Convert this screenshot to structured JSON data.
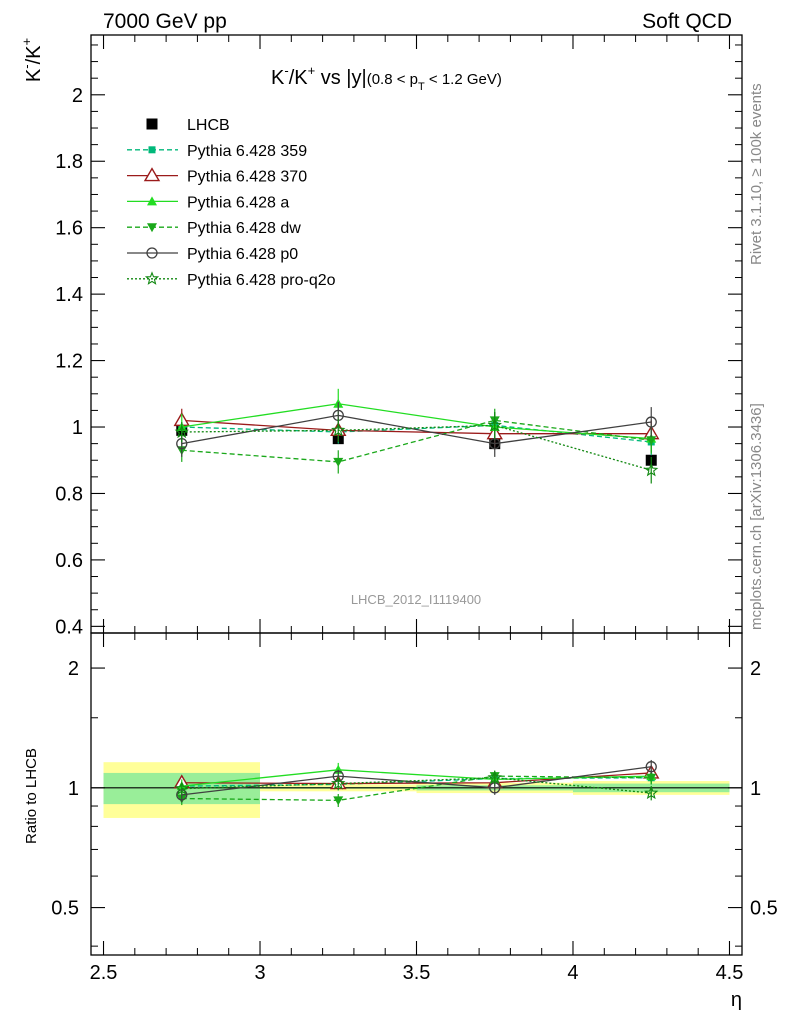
{
  "header": {
    "left": "7000 GeV pp",
    "right": "Soft QCD"
  },
  "side_labels": {
    "top": "Rivet 3.1.10, ≥ 100k events",
    "bottom": "mcplots.cern.ch [arXiv:1306.3436]"
  },
  "colors": {
    "lhcb": "#000000",
    "p359": "#00b87a",
    "p370": "#9b1b1b",
    "pa": "#22dd22",
    "pdw": "#1aa81a",
    "pp0": "#404040",
    "pq2o": "#118811",
    "band_inner": "#99ee99",
    "band_outer": "#ffff99"
  },
  "chart_data": [
    {
      "type": "line",
      "title": "K⁻/K⁺ vs |y|(0.8 < p_T < 1.2 GeV)",
      "title_main": "K",
      "title_sup1": "-",
      "title_mid": "/K",
      "title_sup2": "+",
      "title_vs": " vs |y|",
      "title_cut_a": "(0.8 < p",
      "title_cut_sub": "T",
      "title_cut_b": " < 1.2 GeV)",
      "ylabel": "K⁻/K⁺",
      "ylabel_main1": "K",
      "ylabel_sup1": "-",
      "ylabel_main2": "/K",
      "ylabel_sup2": "+",
      "watermark": "LHCB_2012_I1119400",
      "x": [
        2.75,
        3.25,
        3.75,
        4.25
      ],
      "xlim": [
        2.46,
        4.54
      ],
      "ylim": [
        0.38,
        2.18
      ],
      "yticks": [
        0.4,
        0.6,
        0.8,
        1,
        1.2,
        1.4,
        1.6,
        1.8,
        2
      ],
      "yticklabels": [
        "0.4",
        "0.6",
        "0.8",
        "1",
        "1.2",
        "1.4",
        "1.6",
        "1.8",
        "2"
      ],
      "legend_position": "top-left",
      "series": [
        {
          "name": "LHCB",
          "values": [
            0.99,
            0.965,
            0.95,
            0.9
          ],
          "errors": [
            0.0,
            0.0,
            0.0,
            0.0
          ]
        },
        {
          "name": "Pythia 6.428 359",
          "values": [
            1.0,
            0.985,
            1.005,
            0.955
          ],
          "errors": [
            0.04,
            0.035,
            0.04,
            0.04
          ]
        },
        {
          "name": "Pythia 6.428 370",
          "values": [
            1.02,
            0.99,
            0.98,
            0.98
          ],
          "errors": [
            0.035,
            0.035,
            0.04,
            0.04
          ]
        },
        {
          "name": "Pythia 6.428 a",
          "values": [
            1.0,
            1.07,
            1.0,
            0.965
          ],
          "errors": [
            0.04,
            0.045,
            0.04,
            0.04
          ]
        },
        {
          "name": "Pythia 6.428 dw",
          "values": [
            0.93,
            0.895,
            1.02,
            0.96
          ],
          "errors": [
            0.035,
            0.035,
            0.035,
            0.04
          ]
        },
        {
          "name": "Pythia 6.428 p0",
          "values": [
            0.95,
            1.035,
            0.95,
            1.015
          ],
          "errors": [
            0.04,
            0.04,
            0.04,
            0.045
          ]
        },
        {
          "name": "Pythia 6.428 pro-q2o",
          "values": [
            0.985,
            0.99,
            1.005,
            0.87
          ],
          "errors": [
            0.03,
            0.035,
            0.04,
            0.04
          ]
        }
      ]
    },
    {
      "type": "line",
      "ylabel": "Ratio to LHCB",
      "xlabel": "η",
      "x": [
        2.75,
        3.25,
        3.75,
        4.25
      ],
      "xlim": [
        2.46,
        4.54
      ],
      "ylim": [
        0.38,
        2.45
      ],
      "log_y": true,
      "yticks": [
        0.5,
        1,
        2
      ],
      "yticklabels": [
        "0.5",
        "1",
        "2"
      ],
      "xticks": [
        2.5,
        3,
        3.5,
        4,
        4.5
      ],
      "xticklabels": [
        "2.5",
        "3",
        "3.5",
        "4",
        "4.5"
      ],
      "uncertainty_band": [
        {
          "x0": 2.5,
          "x1": 3.0,
          "inner": [
            0.91,
            1.09
          ],
          "outer": [
            0.84,
            1.16
          ]
        },
        {
          "x0": 3.0,
          "x1": 3.5,
          "inner": [
            0.995,
            1.005
          ],
          "outer": [
            0.98,
            1.02
          ]
        },
        {
          "x0": 3.5,
          "x1": 4.0,
          "inner": [
            0.985,
            1.015
          ],
          "outer": [
            0.97,
            1.03
          ]
        },
        {
          "x0": 4.0,
          "x1": 4.5,
          "inner": [
            0.975,
            1.025
          ],
          "outer": [
            0.96,
            1.04
          ]
        }
      ],
      "series": [
        {
          "name": "Pythia 6.428 359",
          "values": [
            1.01,
            1.02,
            1.055,
            1.06
          ],
          "errors": [
            0.04,
            0.035,
            0.04,
            0.04
          ]
        },
        {
          "name": "Pythia 6.428 370",
          "values": [
            1.03,
            1.025,
            1.03,
            1.09
          ],
          "errors": [
            0.035,
            0.035,
            0.04,
            0.04
          ]
        },
        {
          "name": "Pythia 6.428 a",
          "values": [
            1.01,
            1.11,
            1.05,
            1.07
          ],
          "errors": [
            0.04,
            0.045,
            0.04,
            0.04
          ]
        },
        {
          "name": "Pythia 6.428 dw",
          "values": [
            0.94,
            0.93,
            1.07,
            1.06
          ],
          "errors": [
            0.035,
            0.035,
            0.035,
            0.04
          ]
        },
        {
          "name": "Pythia 6.428 p0",
          "values": [
            0.96,
            1.07,
            1.0,
            1.13
          ],
          "errors": [
            0.04,
            0.04,
            0.04,
            0.045
          ]
        },
        {
          "name": "Pythia 6.428 pro-q2o",
          "values": [
            0.995,
            1.025,
            1.06,
            0.97
          ],
          "errors": [
            0.03,
            0.035,
            0.04,
            0.04
          ]
        }
      ]
    }
  ]
}
